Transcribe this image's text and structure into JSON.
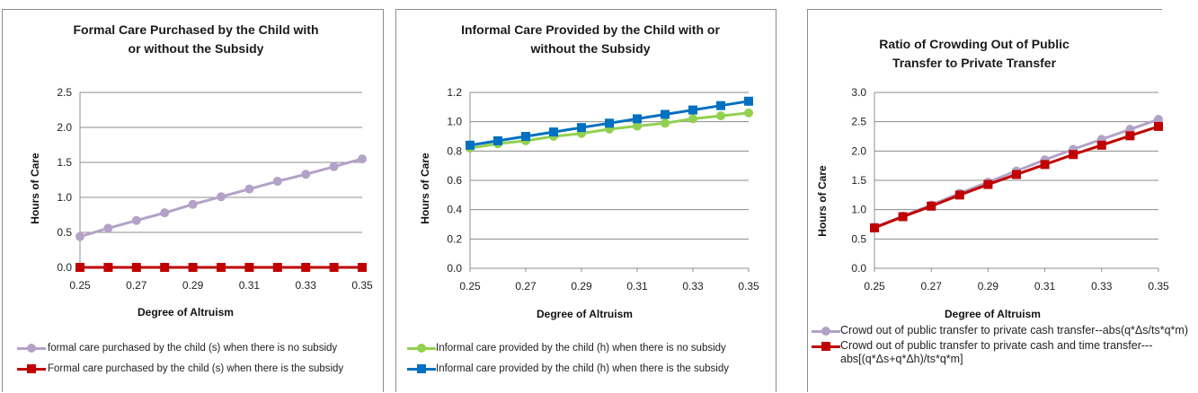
{
  "chart_data": [
    {
      "type": "line",
      "title": "Formal Care Purchased by the Child with or without the Subsidy",
      "xlabel": "Degree of Altruism",
      "ylabel": "Hours of Care",
      "x": [
        0.25,
        0.26,
        0.27,
        0.28,
        0.29,
        0.3,
        0.31,
        0.32,
        0.33,
        0.34,
        0.35
      ],
      "xticks": [
        "0.25",
        "0.27",
        "0.29",
        "0.31",
        "0.33",
        "0.35"
      ],
      "xlim": [
        0.25,
        0.35
      ],
      "ylim": [
        0,
        2.5
      ],
      "yticks": [
        "0.0",
        "0.5",
        "1.0",
        "1.5",
        "2.0",
        "2.5"
      ],
      "grid": "horizontal",
      "legend_position": "bottom",
      "series": [
        {
          "name": "formal care purchased by the child (s) when there is no subsidy",
          "color": "#b3a2c7",
          "marker": "circle",
          "values": [
            0.44,
            0.56,
            0.67,
            0.78,
            0.9,
            1.01,
            1.12,
            1.23,
            1.33,
            1.44,
            1.55
          ]
        },
        {
          "name": "Formal care purchased by the child (s) when there is the subsidy",
          "color": "#c00000",
          "marker": "square",
          "values": [
            0,
            0,
            0,
            0,
            0,
            0,
            0,
            0,
            0,
            0,
            0
          ]
        }
      ]
    },
    {
      "type": "line",
      "title": "Informal Care Provided by the Child with or without the Subsidy",
      "xlabel": "Degree of Altruism",
      "ylabel": "Hours of Care",
      "x": [
        0.25,
        0.26,
        0.27,
        0.28,
        0.29,
        0.3,
        0.31,
        0.32,
        0.33,
        0.34,
        0.35
      ],
      "xticks": [
        "0.25",
        "0.27",
        "0.29",
        "0.31",
        "0.33",
        "0.35"
      ],
      "xlim": [
        0.25,
        0.35
      ],
      "ylim": [
        0,
        1.2
      ],
      "yticks": [
        "0.0",
        "0.2",
        "0.4",
        "0.6",
        "0.8",
        "1.0",
        "1.2"
      ],
      "grid": "horizontal",
      "legend_position": "bottom",
      "series": [
        {
          "name": "Informal care provided by the child (h) when there is no subsidy",
          "color": "#92d050",
          "marker": "circle",
          "values": [
            0.82,
            0.85,
            0.87,
            0.9,
            0.92,
            0.95,
            0.97,
            0.99,
            1.02,
            1.04,
            1.06
          ]
        },
        {
          "name": "Informal care provided by the child (h) when there is the subsidy",
          "color": "#0070c0",
          "marker": "square",
          "values": [
            0.84,
            0.87,
            0.9,
            0.93,
            0.96,
            0.99,
            1.02,
            1.05,
            1.08,
            1.11,
            1.14
          ]
        }
      ]
    },
    {
      "type": "line",
      "title": "Ratio of Crowding Out of Public Transfer to Private Transfer",
      "xlabel": "Degree of Altruism",
      "ylabel": "Hours of Care",
      "x": [
        0.25,
        0.26,
        0.27,
        0.28,
        0.29,
        0.3,
        0.31,
        0.32,
        0.33,
        0.34,
        0.35
      ],
      "xticks": [
        "0.25",
        "0.27",
        "0.29",
        "0.31",
        "0.33",
        "0.35"
      ],
      "xlim": [
        0.25,
        0.35
      ],
      "ylim": [
        0,
        3.0
      ],
      "yticks": [
        "0.0",
        "0.5",
        "1.0",
        "1.5",
        "2.0",
        "2.5",
        "3.0"
      ],
      "grid": "horizontal",
      "legend_position": "bottom",
      "series": [
        {
          "name": "Crowd out of public transfer to private cash transfer--abs(q*Δs/ts*q*m)",
          "color": "#b3a2c7",
          "marker": "circle",
          "values": [
            0.7,
            0.89,
            1.08,
            1.28,
            1.47,
            1.66,
            1.85,
            2.03,
            2.2,
            2.37,
            2.54
          ]
        },
        {
          "name": "Crowd out of public transfer to private cash and time transfer---abs[(q*Δs+q*Δh)/ts*q*m]",
          "color": "#c00000",
          "marker": "square",
          "values": [
            0.69,
            0.88,
            1.06,
            1.25,
            1.43,
            1.6,
            1.77,
            1.94,
            2.1,
            2.26,
            2.42
          ]
        }
      ]
    }
  ]
}
